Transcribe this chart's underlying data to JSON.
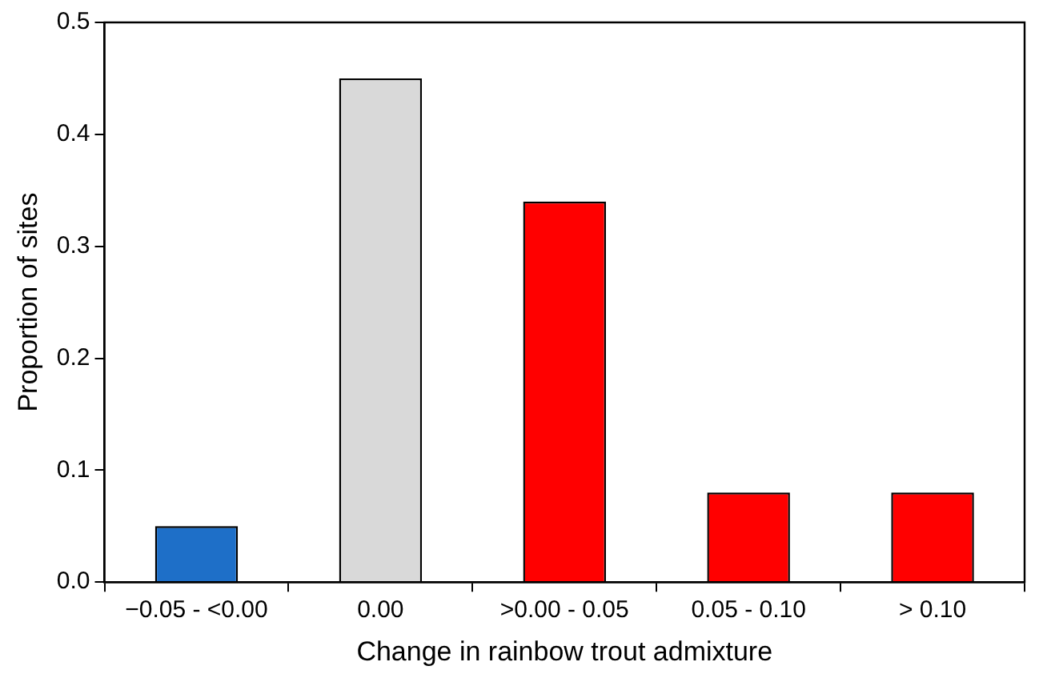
{
  "chart_data": {
    "type": "bar",
    "xlabel": "Change in rainbow trout admixture",
    "ylabel": "Proportion of sites",
    "categories": [
      "−0.05 - <0.00",
      "0.00",
      ">0.00 - 0.05",
      "0.05 - 0.10",
      "> 0.10"
    ],
    "values": [
      0.05,
      0.45,
      0.34,
      0.08,
      0.08
    ],
    "colors": [
      "#1e6fc8",
      "#d9d9d9",
      "#ff0000",
      "#ff0000",
      "#ff0000"
    ],
    "ylim": [
      0,
      0.5
    ],
    "yticks": [
      {
        "value": 0,
        "label": "0.0"
      },
      {
        "value": 0.1,
        "label": "0.1"
      },
      {
        "value": 0.2,
        "label": "0.2"
      },
      {
        "value": 0.3,
        "label": "0.3"
      },
      {
        "value": 0.4,
        "label": "0.4"
      },
      {
        "value": 0.5,
        "label": "0.5"
      }
    ],
    "grid": false,
    "legend": false
  }
}
